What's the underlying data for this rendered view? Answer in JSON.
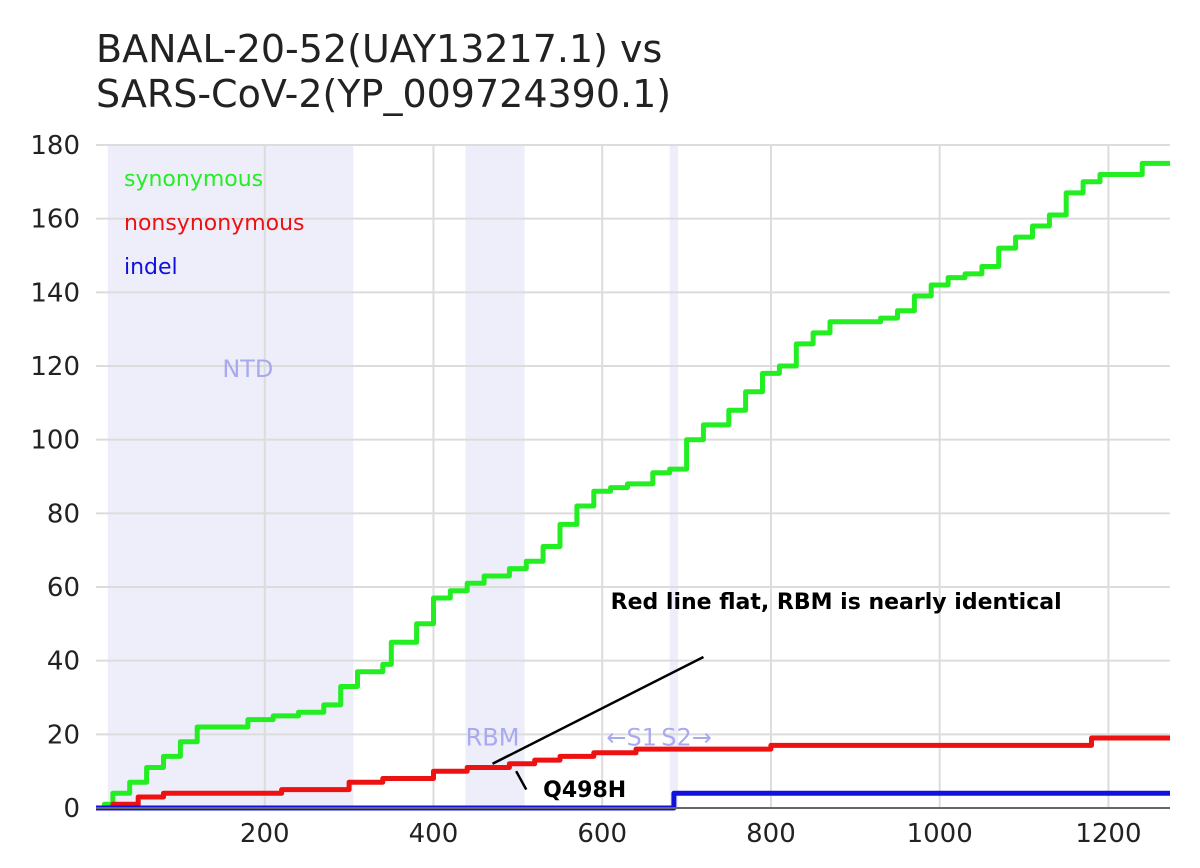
{
  "title_line1": "BANAL-20-52(UAY13217.1) vs",
  "title_line2": "SARS-CoV-2(YP_009724390.1)",
  "chart_data": {
    "type": "line",
    "xlim": [
      0,
      1273
    ],
    "ylim": [
      0,
      180
    ],
    "x_ticks": [
      200,
      400,
      600,
      800,
      1000,
      1200
    ],
    "y_ticks": [
      0,
      20,
      40,
      60,
      80,
      100,
      120,
      140,
      160,
      180
    ],
    "grid": true,
    "legend_position": "top-left",
    "regions": [
      {
        "label": "NTD",
        "start": 14,
        "end": 305,
        "color": "#eeeefa"
      },
      {
        "label": "RBM",
        "start": 438,
        "end": 508,
        "color": "#eeeefa"
      },
      {
        "label": "",
        "start": 680,
        "end": 690,
        "color": "#eeeefa"
      }
    ],
    "domain_labels": [
      {
        "text": "NTD",
        "x": 180,
        "y": 117
      },
      {
        "text": "RBM",
        "x": 470,
        "y": 17
      },
      {
        "text": "←S1",
        "x": 635,
        "y": 17
      },
      {
        "text": "S2→",
        "x": 700,
        "y": 17
      }
    ],
    "series": [
      {
        "name": "synonymous",
        "color": "#22ee22",
        "points": [
          [
            0,
            0
          ],
          [
            10,
            1
          ],
          [
            20,
            4
          ],
          [
            40,
            7
          ],
          [
            60,
            11
          ],
          [
            80,
            14
          ],
          [
            100,
            18
          ],
          [
            120,
            22
          ],
          [
            150,
            22
          ],
          [
            180,
            24
          ],
          [
            210,
            25
          ],
          [
            240,
            26
          ],
          [
            270,
            28
          ],
          [
            290,
            33
          ],
          [
            310,
            37
          ],
          [
            340,
            39
          ],
          [
            350,
            45
          ],
          [
            380,
            50
          ],
          [
            400,
            57
          ],
          [
            420,
            59
          ],
          [
            440,
            61
          ],
          [
            460,
            63
          ],
          [
            490,
            65
          ],
          [
            510,
            67
          ],
          [
            530,
            71
          ],
          [
            550,
            77
          ],
          [
            570,
            82
          ],
          [
            590,
            86
          ],
          [
            610,
            87
          ],
          [
            630,
            88
          ],
          [
            660,
            91
          ],
          [
            680,
            92
          ],
          [
            700,
            100
          ],
          [
            720,
            104
          ],
          [
            750,
            108
          ],
          [
            770,
            113
          ],
          [
            790,
            118
          ],
          [
            810,
            120
          ],
          [
            830,
            126
          ],
          [
            850,
            129
          ],
          [
            870,
            132
          ],
          [
            900,
            132
          ],
          [
            930,
            133
          ],
          [
            950,
            135
          ],
          [
            970,
            139
          ],
          [
            990,
            142
          ],
          [
            1010,
            144
          ],
          [
            1030,
            145
          ],
          [
            1050,
            147
          ],
          [
            1070,
            152
          ],
          [
            1090,
            155
          ],
          [
            1110,
            158
          ],
          [
            1130,
            161
          ],
          [
            1150,
            167
          ],
          [
            1170,
            170
          ],
          [
            1190,
            172
          ],
          [
            1210,
            172
          ],
          [
            1240,
            175
          ],
          [
            1273,
            175
          ]
        ]
      },
      {
        "name": "nonsynonymous",
        "color": "#ee1111",
        "points": [
          [
            0,
            0
          ],
          [
            20,
            1
          ],
          [
            50,
            3
          ],
          [
            80,
            4
          ],
          [
            150,
            4
          ],
          [
            220,
            5
          ],
          [
            300,
            7
          ],
          [
            340,
            8
          ],
          [
            400,
            10
          ],
          [
            440,
            11
          ],
          [
            490,
            12
          ],
          [
            520,
            13
          ],
          [
            550,
            14
          ],
          [
            590,
            15
          ],
          [
            640,
            16
          ],
          [
            720,
            16
          ],
          [
            800,
            17
          ],
          [
            1100,
            17
          ],
          [
            1180,
            19
          ],
          [
            1273,
            19
          ]
        ]
      },
      {
        "name": "indel",
        "color": "#1111dd",
        "points": [
          [
            0,
            0
          ],
          [
            680,
            0
          ],
          [
            685,
            4
          ],
          [
            1273,
            4
          ]
        ]
      }
    ],
    "annotations": [
      {
        "text": "Red line flat, RBM is nearly identical",
        "x": 610,
        "y": 54,
        "line_from": [
          470,
          12
        ],
        "line_to": [
          720,
          41
        ]
      },
      {
        "text": "Q498H",
        "x": 530,
        "y": 3,
        "line_from": [
          498,
          10
        ],
        "line_to": [
          510,
          5
        ]
      }
    ]
  }
}
